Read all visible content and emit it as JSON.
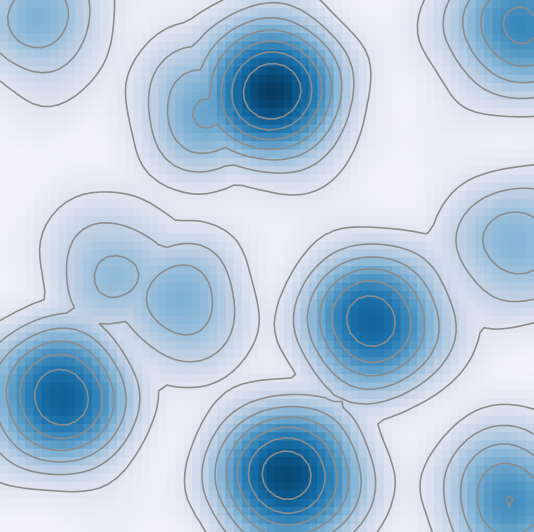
{
  "chart_data": {
    "type": "heatmap",
    "subtype": "filled-contour",
    "title": "",
    "xlabel": "",
    "ylabel": "",
    "axes_visible": false,
    "grid": false,
    "legend": "none",
    "colormap": {
      "name": "blues",
      "stops": [
        "#f4f3f9",
        "#dde1ef",
        "#b9cde2",
        "#86b5d6",
        "#4d94c2",
        "#1f76b0",
        "#0d5a8e",
        "#06385c"
      ]
    },
    "contour_line_color": "#8c8c8c",
    "value_range": [
      0,
      1
    ],
    "levels": [
      0.12,
      0.24,
      0.36,
      0.48,
      0.6,
      0.72,
      0.84
    ],
    "peaks": [
      {
        "x": 0.505,
        "y": 0.17,
        "value": 0.98
      },
      {
        "x": 0.54,
        "y": 0.895,
        "value": 0.96
      },
      {
        "x": 0.11,
        "y": 0.745,
        "value": 0.84
      },
      {
        "x": 0.7,
        "y": 0.605,
        "value": 0.82
      },
      {
        "x": 0.97,
        "y": 0.05,
        "value": 0.65
      },
      {
        "x": 0.955,
        "y": 0.935,
        "value": 0.6
      },
      {
        "x": 0.39,
        "y": 0.205,
        "value": 0.5
      },
      {
        "x": 0.335,
        "y": 0.57,
        "value": 0.45
      },
      {
        "x": 0.22,
        "y": 0.51,
        "value": 0.4
      },
      {
        "x": 0.97,
        "y": 0.46,
        "value": 0.45
      },
      {
        "x": 0.075,
        "y": 0.035,
        "value": 0.42
      }
    ]
  }
}
